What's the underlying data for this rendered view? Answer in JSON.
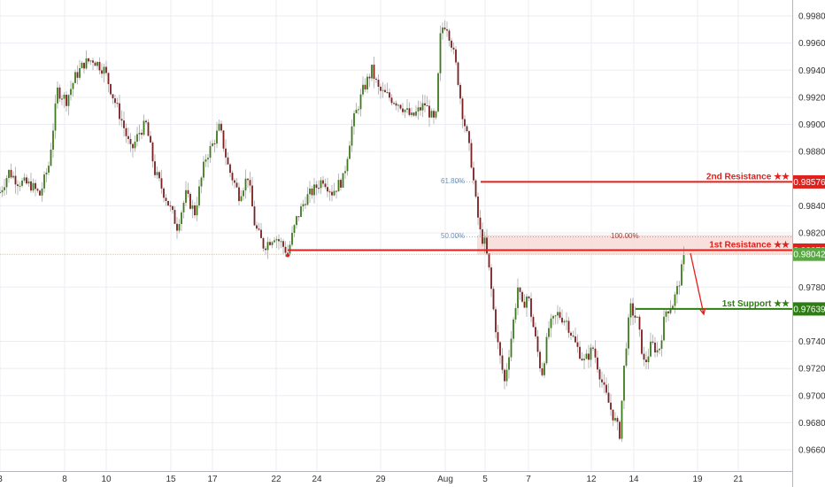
{
  "chart_data": {
    "type": "candlestick",
    "symbol": "",
    "ylim": [
      0.9654,
      0.999
    ],
    "y_ticks": [
      {
        "label": "0.99800",
        "value": 0.998
      },
      {
        "label": "0.99600",
        "value": 0.996
      },
      {
        "label": "0.99400",
        "value": 0.994
      },
      {
        "label": "0.99200",
        "value": 0.992
      },
      {
        "label": "0.99000",
        "value": 0.99
      },
      {
        "label": "0.98800",
        "value": 0.988
      },
      {
        "label": "0.98400",
        "value": 0.984
      },
      {
        "label": "0.98200",
        "value": 0.982
      },
      {
        "label": "0.97800",
        "value": 0.978
      },
      {
        "label": "0.97400",
        "value": 0.974
      },
      {
        "label": "0.97200",
        "value": 0.972
      },
      {
        "label": "0.97000",
        "value": 0.97
      },
      {
        "label": "0.96800",
        "value": 0.968
      },
      {
        "label": "0.96600",
        "value": 0.966
      }
    ],
    "x_ticks": [
      {
        "label": "3",
        "t": 0
      },
      {
        "label": "8",
        "t": 73
      },
      {
        "label": "10",
        "t": 120
      },
      {
        "label": "15",
        "t": 193
      },
      {
        "label": "17",
        "t": 240
      },
      {
        "label": "22",
        "t": 312
      },
      {
        "label": "24",
        "t": 358
      },
      {
        "label": "29",
        "t": 430
      },
      {
        "label": "Aug",
        "t": 503
      },
      {
        "label": "5",
        "t": 548
      },
      {
        "label": "7",
        "t": 597
      },
      {
        "label": "12",
        "t": 668
      },
      {
        "label": "14",
        "t": 716
      },
      {
        "label": "19",
        "t": 788
      },
      {
        "label": "21",
        "t": 834
      }
    ],
    "path_keypoints": [
      [
        0,
        0.985
      ],
      [
        10,
        0.9865
      ],
      [
        20,
        0.9858
      ],
      [
        35,
        0.9855
      ],
      [
        45,
        0.9848
      ],
      [
        55,
        0.987
      ],
      [
        65,
        0.9925
      ],
      [
        75,
        0.9918
      ],
      [
        85,
        0.9935
      ],
      [
        95,
        0.9945
      ],
      [
        105,
        0.9948
      ],
      [
        118,
        0.994
      ],
      [
        128,
        0.992
      ],
      [
        138,
        0.9902
      ],
      [
        148,
        0.988
      ],
      [
        158,
        0.9895
      ],
      [
        165,
        0.99
      ],
      [
        175,
        0.9865
      ],
      [
        188,
        0.9845
      ],
      [
        200,
        0.9825
      ],
      [
        210,
        0.9848
      ],
      [
        220,
        0.9835
      ],
      [
        232,
        0.9875
      ],
      [
        240,
        0.9885
      ],
      [
        248,
        0.9898
      ],
      [
        258,
        0.9868
      ],
      [
        270,
        0.9848
      ],
      [
        280,
        0.9862
      ],
      [
        288,
        0.9825
      ],
      [
        298,
        0.981
      ],
      [
        310,
        0.9818
      ],
      [
        318,
        0.9812
      ],
      [
        325,
        0.9805
      ],
      [
        335,
        0.983
      ],
      [
        345,
        0.9845
      ],
      [
        355,
        0.9852
      ],
      [
        365,
        0.986
      ],
      [
        375,
        0.985
      ],
      [
        388,
        0.986
      ],
      [
        398,
        0.99
      ],
      [
        410,
        0.9925
      ],
      [
        420,
        0.994
      ],
      [
        428,
        0.9925
      ],
      [
        440,
        0.992
      ],
      [
        452,
        0.9915
      ],
      [
        465,
        0.9905
      ],
      [
        480,
        0.9915
      ],
      [
        492,
        0.99
      ],
      [
        498,
        0.997
      ],
      [
        504,
        0.9975
      ],
      [
        510,
        0.996
      ],
      [
        516,
        0.994
      ],
      [
        522,
        0.991
      ],
      [
        528,
        0.989
      ],
      [
        533,
        0.987
      ],
      [
        538,
        0.984
      ],
      [
        543,
        0.9818
      ],
      [
        548,
        0.9812
      ],
      [
        553,
        0.979
      ],
      [
        558,
        0.976
      ],
      [
        563,
        0.9735
      ],
      [
        570,
        0.971
      ],
      [
        578,
        0.9745
      ],
      [
        585,
        0.978
      ],
      [
        590,
        0.9765
      ],
      [
        596,
        0.9775
      ],
      [
        604,
        0.9745
      ],
      [
        612,
        0.9715
      ],
      [
        620,
        0.975
      ],
      [
        630,
        0.976
      ],
      [
        640,
        0.9755
      ],
      [
        650,
        0.9738
      ],
      [
        660,
        0.9725
      ],
      [
        670,
        0.9735
      ],
      [
        682,
        0.9705
      ],
      [
        690,
        0.969
      ],
      [
        700,
        0.9672
      ],
      [
        706,
        0.973
      ],
      [
        712,
        0.9765
      ],
      [
        720,
        0.9755
      ],
      [
        728,
        0.9722
      ],
      [
        736,
        0.9738
      ],
      [
        744,
        0.9732
      ],
      [
        752,
        0.9762
      ],
      [
        760,
        0.9768
      ],
      [
        766,
        0.978
      ],
      [
        773,
        0.9802
      ]
    ],
    "pivot_low": {
      "t": 325,
      "value": 0.9804
    },
    "current_price": {
      "label": "0.98042",
      "value": 0.98042
    },
    "levels": [
      {
        "name": "2nd Resistance ★★",
        "price_label": "0.98576",
        "value": 0.98576,
        "color": "#e0201c",
        "start_t": 543
      },
      {
        "name": "1st Resistance ★★",
        "price_label": "0.98073",
        "value": 0.98073,
        "color": "#e0201c",
        "start_t": 325
      },
      {
        "name": "1st Support ★★",
        "price_label": "0.97639",
        "value": 0.97639,
        "color": "#2e7d14",
        "start_t": 718
      }
    ],
    "fib_labels": [
      {
        "label": "61.80%",
        "value": 0.98576,
        "t": 498
      },
      {
        "label": "50.00%",
        "value": 0.9817,
        "t": 498
      },
      {
        "label": "100.00%",
        "value": 0.9817,
        "t": 690
      }
    ],
    "resistance_zone": {
      "top": 0.98185,
      "bottom": 0.9804,
      "start_t": 539,
      "end_t": 895
    },
    "projection_arrow": {
      "from": [
        780,
        0.9805
      ],
      "to": [
        795,
        0.976
      ]
    },
    "colors": {
      "up": "#3d7a1d",
      "down": "#7b1f1f",
      "grid": "#ecedf2",
      "axis_text": "#333333",
      "resistance": "#e0201c",
      "support": "#2e7d14",
      "zone_fill": "#f6d5d2",
      "price_badge": "#5aa844"
    }
  }
}
